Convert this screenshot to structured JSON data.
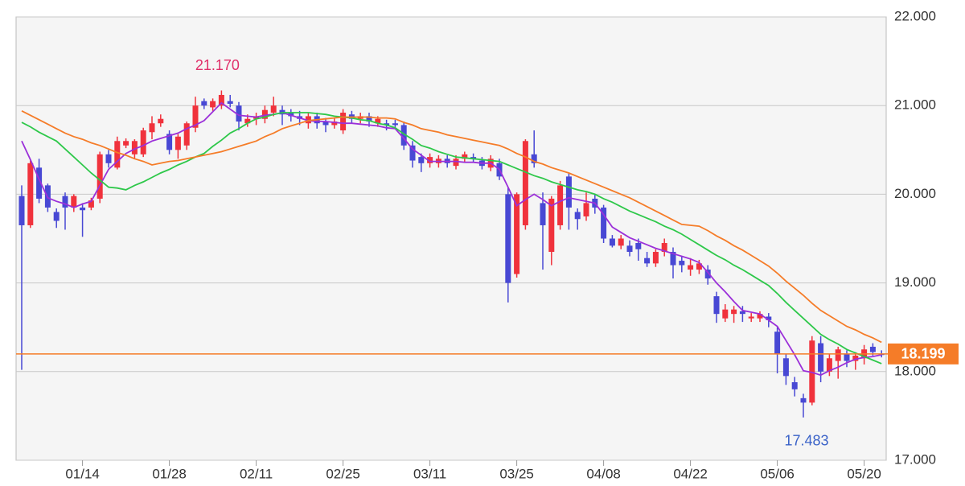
{
  "chart_data": {
    "type": "candlestick",
    "categories": [
      null,
      null,
      null,
      null,
      null,
      null,
      null,
      "01/14",
      null,
      null,
      null,
      null,
      null,
      null,
      null,
      null,
      null,
      "01/28",
      null,
      null,
      null,
      null,
      null,
      null,
      null,
      null,
      null,
      "02/11",
      null,
      null,
      null,
      null,
      null,
      null,
      null,
      null,
      null,
      "02/25",
      null,
      null,
      null,
      null,
      null,
      null,
      null,
      null,
      null,
      "03/11",
      null,
      null,
      null,
      null,
      null,
      null,
      null,
      null,
      null,
      "03/25",
      null,
      null,
      null,
      null,
      null,
      null,
      null,
      null,
      null,
      "04/08",
      null,
      null,
      null,
      null,
      null,
      null,
      null,
      null,
      null,
      "04/22",
      null,
      null,
      null,
      null,
      null,
      null,
      null,
      null,
      null,
      "05/06",
      null,
      null,
      null,
      null,
      null,
      null,
      null,
      null,
      null,
      "05/20",
      null,
      null
    ],
    "candles": {
      "up_color": "#f0323c",
      "down_color": "#4848d4",
      "open": [
        19.98,
        19.65,
        20.3,
        20.1,
        19.8,
        19.98,
        19.85,
        19.85,
        19.85,
        19.95,
        20.45,
        20.3,
        20.55,
        20.45,
        20.45,
        20.7,
        20.8,
        20.68,
        20.5,
        20.55,
        20.75,
        21.05,
        20.98,
        21.0,
        21.05,
        21.0,
        20.8,
        20.85,
        20.85,
        20.92,
        20.95,
        20.92,
        20.88,
        20.8,
        20.88,
        20.82,
        20.78,
        20.72,
        20.9,
        20.85,
        20.88,
        20.8,
        20.8,
        20.8,
        20.78,
        20.55,
        20.42,
        20.35,
        20.35,
        20.4,
        20.32,
        20.4,
        20.42,
        20.38,
        20.3,
        20.35,
        20.0,
        19.1,
        19.65,
        20.45,
        19.9,
        19.35,
        19.65,
        20.2,
        19.8,
        19.75,
        19.95,
        19.85,
        19.5,
        19.42,
        19.42,
        19.45,
        19.28,
        19.22,
        19.35,
        19.35,
        19.25,
        19.15,
        19.15,
        19.15,
        18.85,
        18.6,
        18.65,
        18.68,
        18.6,
        18.6,
        18.62,
        18.45,
        18.15,
        17.88,
        17.7,
        17.65,
        18.32,
        18.0,
        18.12,
        18.2,
        18.12,
        18.15,
        18.28,
        18.2
      ],
      "high": [
        20.1,
        20.38,
        20.4,
        20.12,
        19.84,
        20.02,
        20.0,
        19.9,
        19.96,
        20.48,
        20.5,
        20.65,
        20.63,
        20.62,
        20.75,
        20.88,
        20.9,
        20.72,
        20.68,
        20.82,
        21.1,
        21.08,
        21.08,
        21.17,
        21.12,
        21.04,
        20.9,
        20.92,
        21.0,
        21.1,
        21.0,
        20.96,
        20.94,
        20.92,
        20.92,
        20.86,
        20.86,
        20.96,
        20.94,
        20.92,
        20.92,
        20.88,
        20.84,
        20.84,
        20.82,
        20.6,
        20.46,
        20.46,
        20.44,
        20.44,
        20.44,
        20.48,
        20.46,
        20.42,
        20.44,
        20.4,
        20.08,
        20.02,
        20.62,
        20.72,
        20.02,
        19.98,
        20.15,
        20.24,
        19.84,
        20.02,
        20.0,
        19.88,
        19.54,
        19.54,
        19.48,
        19.5,
        19.35,
        19.38,
        19.5,
        19.4,
        19.3,
        19.28,
        19.26,
        19.2,
        18.9,
        18.76,
        18.74,
        18.74,
        18.66,
        18.68,
        18.66,
        18.5,
        18.2,
        17.94,
        17.75,
        18.4,
        18.4,
        18.2,
        18.28,
        18.24,
        18.22,
        18.3,
        18.32,
        18.24
      ],
      "low": [
        18.02,
        19.62,
        19.9,
        19.8,
        19.62,
        19.6,
        19.8,
        19.52,
        19.82,
        19.9,
        20.3,
        20.28,
        20.52,
        20.4,
        20.42,
        20.62,
        20.76,
        20.45,
        20.4,
        20.5,
        20.7,
        20.96,
        20.94,
        20.96,
        20.98,
        20.72,
        20.76,
        20.78,
        20.8,
        20.88,
        20.78,
        20.82,
        20.78,
        20.74,
        20.74,
        20.7,
        20.74,
        20.68,
        20.8,
        20.8,
        20.76,
        20.76,
        20.72,
        20.74,
        20.5,
        20.3,
        20.25,
        20.3,
        20.3,
        20.3,
        20.28,
        20.36,
        20.36,
        20.28,
        20.26,
        20.16,
        18.78,
        19.06,
        19.6,
        20.3,
        19.15,
        19.2,
        19.6,
        19.6,
        19.6,
        19.7,
        19.78,
        19.45,
        19.4,
        19.38,
        19.3,
        19.25,
        19.18,
        19.18,
        19.3,
        19.05,
        19.12,
        19.08,
        19.1,
        18.98,
        18.55,
        18.56,
        18.55,
        18.56,
        18.56,
        18.56,
        18.5,
        17.98,
        17.85,
        17.72,
        17.483,
        17.62,
        17.88,
        17.95,
        17.92,
        18.05,
        18.02,
        18.08,
        18.18,
        18.16
      ],
      "close": [
        19.65,
        20.35,
        19.95,
        19.85,
        19.7,
        19.85,
        19.98,
        19.82,
        19.93,
        20.45,
        20.35,
        20.6,
        20.6,
        20.6,
        20.72,
        20.8,
        20.85,
        20.5,
        20.65,
        20.8,
        21.0,
        21.0,
        21.05,
        21.12,
        21.02,
        20.82,
        20.85,
        20.88,
        20.95,
        21.0,
        20.9,
        20.88,
        20.85,
        20.88,
        20.8,
        20.78,
        20.82,
        20.92,
        20.85,
        20.88,
        20.82,
        20.85,
        20.78,
        20.78,
        20.55,
        20.38,
        20.35,
        20.42,
        20.4,
        20.35,
        20.4,
        20.45,
        20.4,
        20.32,
        20.4,
        20.2,
        19.0,
        20.0,
        20.6,
        20.35,
        19.65,
        19.95,
        20.1,
        19.85,
        19.72,
        19.9,
        19.85,
        19.5,
        19.42,
        19.5,
        19.35,
        19.38,
        19.22,
        19.35,
        19.45,
        19.2,
        19.2,
        19.2,
        19.22,
        19.05,
        18.65,
        18.7,
        18.7,
        18.65,
        18.62,
        18.65,
        18.58,
        18.2,
        17.95,
        17.8,
        17.65,
        18.35,
        18.0,
        18.15,
        18.25,
        18.12,
        18.18,
        18.25,
        18.22,
        18.199
      ]
    },
    "series": [
      {
        "color": "#9b30d9",
        "values": [
          20.6,
          20.39,
          20.17,
          19.96,
          19.92,
          19.89,
          19.85,
          19.89,
          19.92,
          20.1,
          20.28,
          20.37,
          20.46,
          20.51,
          20.55,
          20.6,
          20.63,
          20.66,
          20.69,
          20.74,
          20.78,
          20.83,
          20.93,
          21.03,
          20.96,
          20.89,
          20.88,
          20.87,
          20.89,
          20.9,
          20.92,
          20.89,
          20.86,
          20.83,
          20.82,
          20.82,
          20.81,
          20.8,
          20.8,
          20.79,
          20.78,
          20.77,
          20.75,
          20.74,
          20.63,
          20.51,
          20.44,
          20.37,
          20.37,
          20.37,
          20.37,
          20.36,
          20.36,
          20.35,
          20.35,
          20.28,
          20.08,
          19.87,
          19.94,
          20.0,
          19.94,
          19.87,
          19.92,
          19.96,
          19.94,
          19.92,
          19.9,
          19.77,
          19.63,
          19.57,
          19.51,
          19.47,
          19.43,
          19.39,
          19.36,
          19.33,
          19.3,
          19.27,
          19.23,
          19.12,
          19.0,
          18.9,
          18.79,
          18.69,
          18.67,
          18.65,
          18.58,
          18.51,
          18.35,
          18.19,
          18.01,
          17.99,
          17.96,
          18.01,
          18.05,
          18.1,
          18.14,
          18.16,
          18.17,
          18.19
        ]
      },
      {
        "color": "#2ec84a",
        "values": [
          20.81,
          20.76,
          20.7,
          20.65,
          20.6,
          20.51,
          20.42,
          20.33,
          20.24,
          20.16,
          20.08,
          20.07,
          20.05,
          20.1,
          20.14,
          20.19,
          20.24,
          20.28,
          20.33,
          20.37,
          20.42,
          20.46,
          20.54,
          20.61,
          20.69,
          20.74,
          20.8,
          20.85,
          20.87,
          20.9,
          20.92,
          20.92,
          20.92,
          20.92,
          20.91,
          20.9,
          20.88,
          20.87,
          20.86,
          20.84,
          20.83,
          20.8,
          20.78,
          20.75,
          20.68,
          20.62,
          20.55,
          20.52,
          20.48,
          20.45,
          20.42,
          20.41,
          20.4,
          20.39,
          20.38,
          20.37,
          20.33,
          20.29,
          20.25,
          20.21,
          20.18,
          20.14,
          20.11,
          20.08,
          20.05,
          20.03,
          20.0,
          19.95,
          19.91,
          19.86,
          19.81,
          19.77,
          19.73,
          19.69,
          19.64,
          19.6,
          19.55,
          19.49,
          19.43,
          19.37,
          19.31,
          19.26,
          19.2,
          19.15,
          19.09,
          19.03,
          18.97,
          18.88,
          18.78,
          18.69,
          18.6,
          18.51,
          18.42,
          18.36,
          18.31,
          18.25,
          18.21,
          18.17,
          18.13,
          18.09
        ]
      },
      {
        "color": "#f57c28",
        "values": [
          20.94,
          20.89,
          20.84,
          20.79,
          20.74,
          20.69,
          20.65,
          20.62,
          20.58,
          20.55,
          20.51,
          20.47,
          20.44,
          20.4,
          20.37,
          20.33,
          20.35,
          20.37,
          20.38,
          20.4,
          20.42,
          20.44,
          20.46,
          20.48,
          20.51,
          20.54,
          20.57,
          20.6,
          20.65,
          20.69,
          20.74,
          20.77,
          20.8,
          20.83,
          20.84,
          20.85,
          20.86,
          20.87,
          20.87,
          20.87,
          20.87,
          20.86,
          20.86,
          20.85,
          20.81,
          20.78,
          20.74,
          20.72,
          20.7,
          20.67,
          20.65,
          20.63,
          20.61,
          20.59,
          20.57,
          20.55,
          20.51,
          20.46,
          20.42,
          20.37,
          20.34,
          20.3,
          20.27,
          20.24,
          20.2,
          20.16,
          20.12,
          20.08,
          20.04,
          20.0,
          19.96,
          19.91,
          19.86,
          19.81,
          19.76,
          19.71,
          19.66,
          19.65,
          19.64,
          19.59,
          19.53,
          19.48,
          19.42,
          19.37,
          19.31,
          19.25,
          19.19,
          19.11,
          19.02,
          18.94,
          18.86,
          18.77,
          18.69,
          18.63,
          18.57,
          18.51,
          18.47,
          18.42,
          18.38,
          18.33
        ]
      }
    ],
    "high_label": {
      "value": 21.17,
      "label": "21.170",
      "color": "#e0306a"
    },
    "low_label": {
      "value": 17.483,
      "label": "17.483",
      "color": "#3a62c8"
    },
    "last_price": {
      "value": 18.199,
      "label": "18.199",
      "color": "#f57c28"
    },
    "ylim": [
      17,
      22
    ],
    "yticks": [
      {
        "value": 17,
        "label": "17.000"
      },
      {
        "value": 18,
        "label": "18.000"
      },
      {
        "value": 19,
        "label": "19.000"
      },
      {
        "value": 20,
        "label": "20.000"
      },
      {
        "value": 21,
        "label": "21.000"
      },
      {
        "value": 22,
        "label": "22.000"
      }
    ],
    "grid": true
  }
}
